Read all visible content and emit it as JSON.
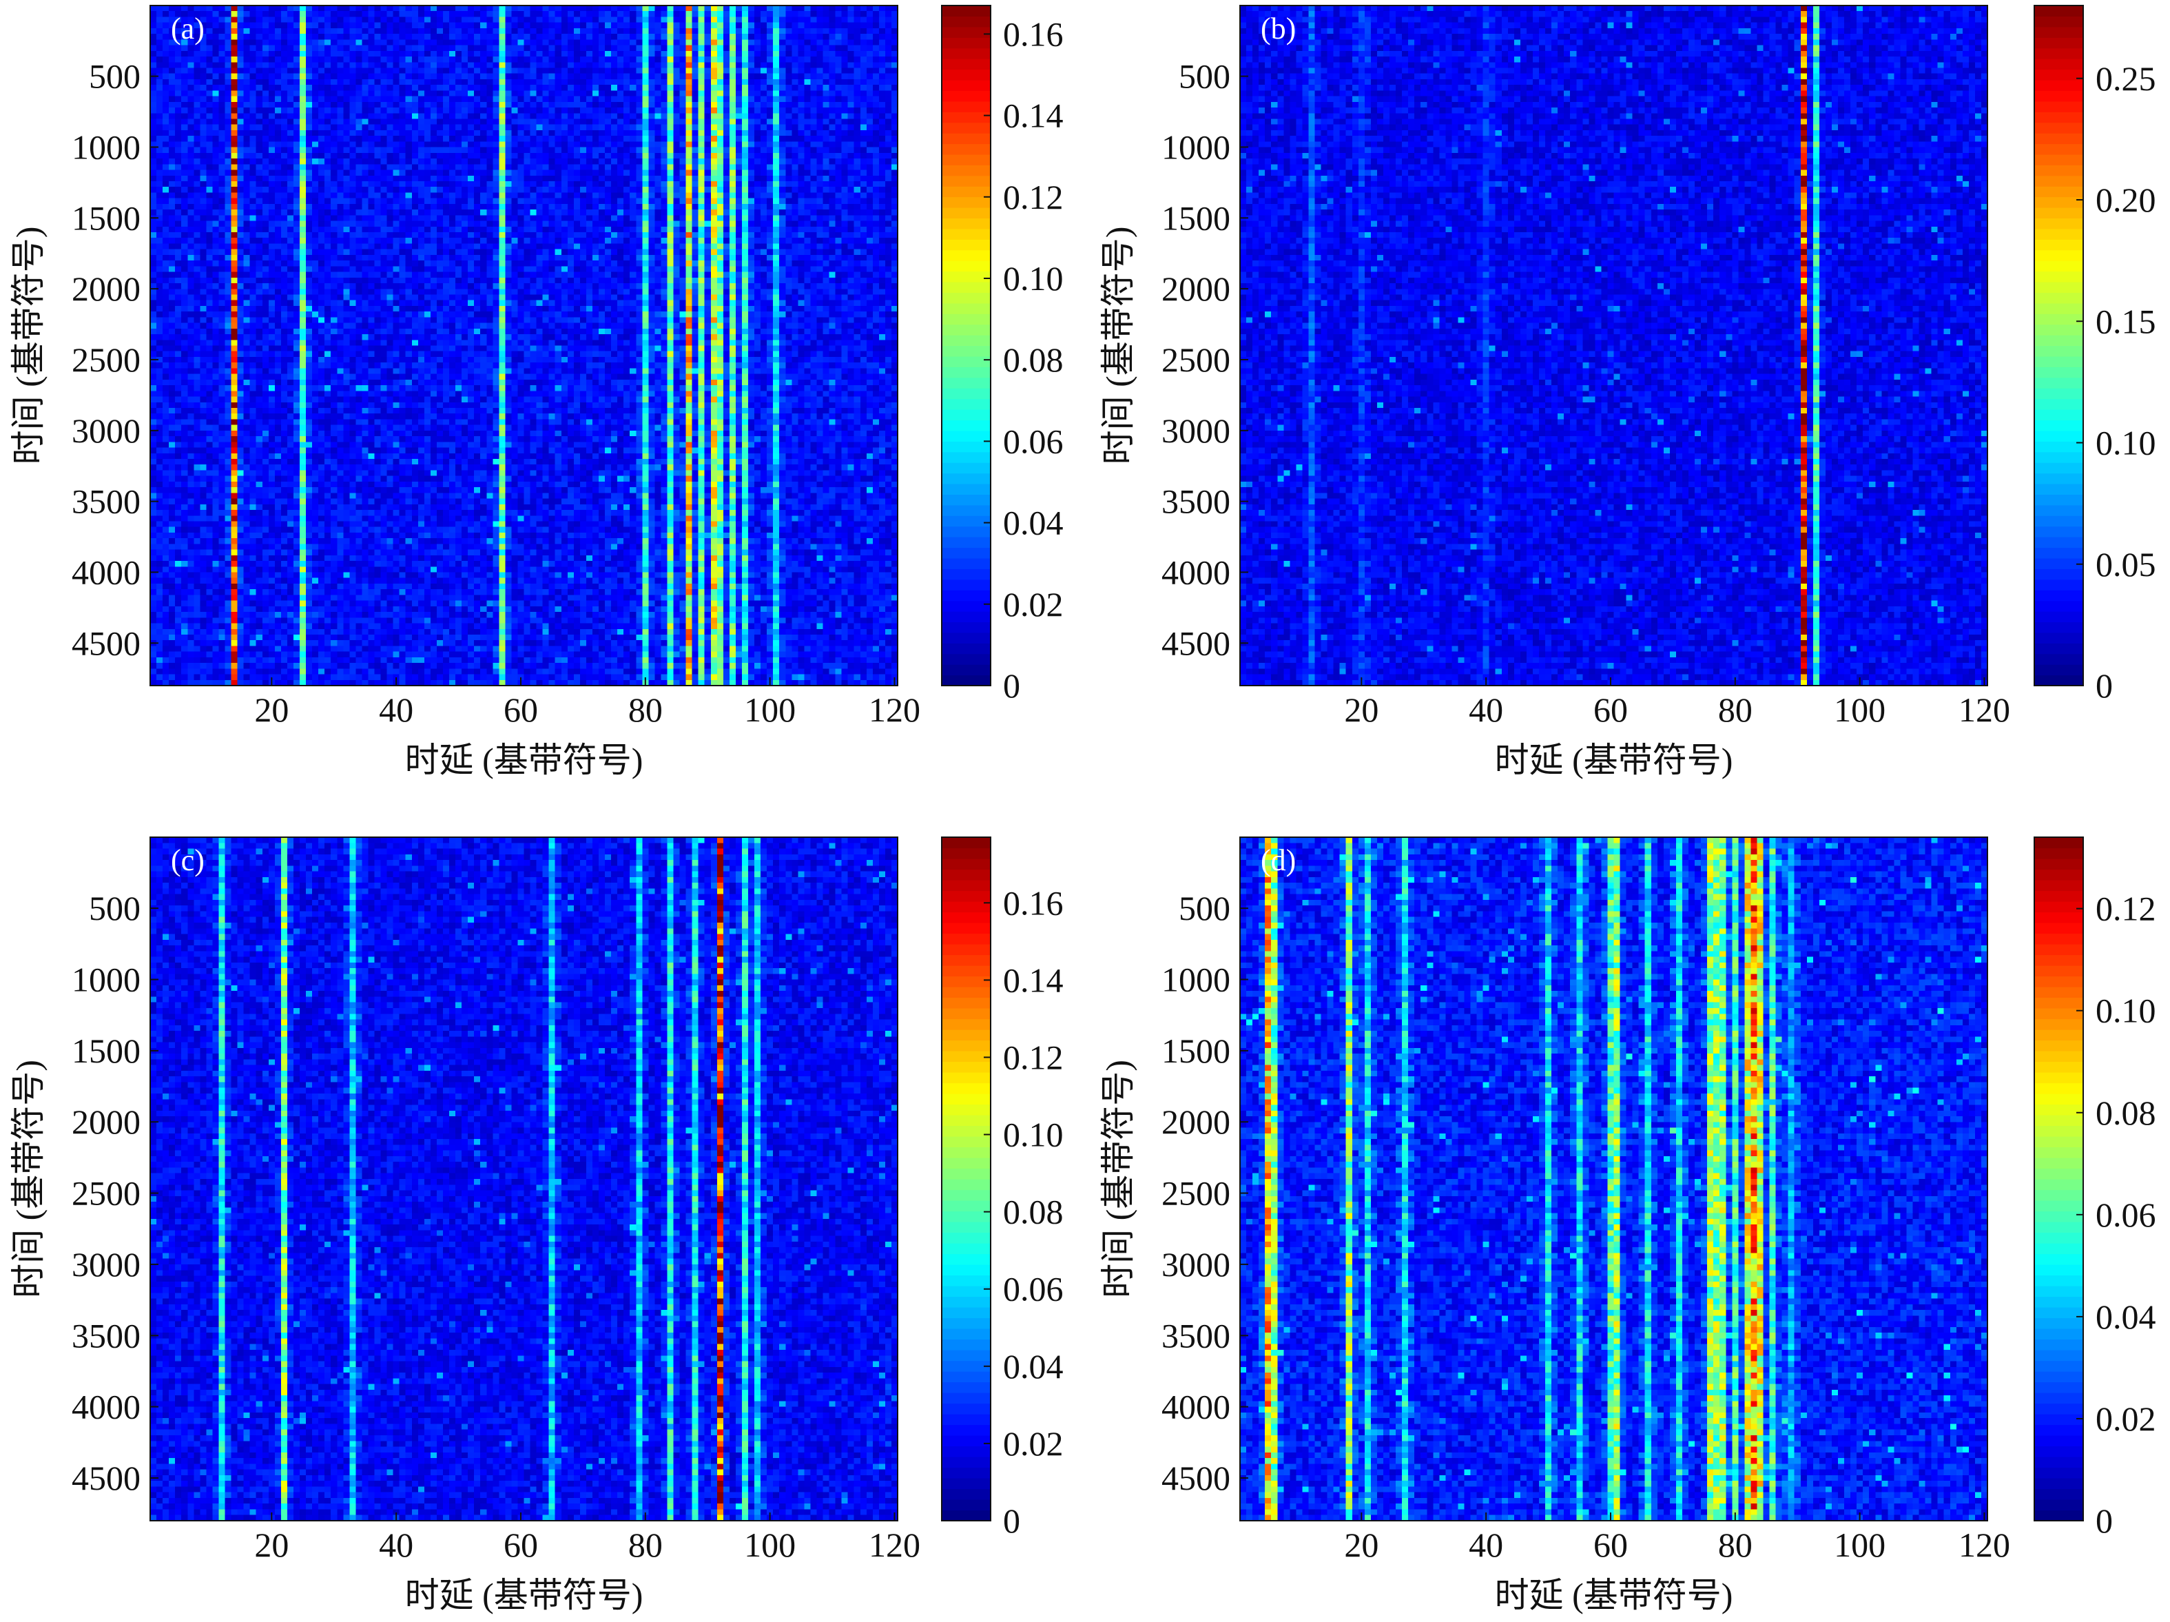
{
  "chart_data": [
    {
      "type": "heatmap",
      "panel_label": "(a)",
      "xlabel": "时延 (基带符号)",
      "ylabel": "时间 (基带符号)",
      "xlim": [
        1,
        120
      ],
      "ylim": [
        1,
        4800
      ],
      "y_reversed": true,
      "x_ticks": [
        "20",
        "40",
        "60",
        "80",
        "100",
        "120"
      ],
      "x_tick_values": [
        20,
        40,
        60,
        80,
        100,
        120
      ],
      "y_ticks": [
        "500",
        "1000",
        "1500",
        "2000",
        "2500",
        "3000",
        "3500",
        "4000",
        "4500"
      ],
      "y_tick_values": [
        500,
        1000,
        1500,
        2000,
        2500,
        3000,
        3500,
        4000,
        4500
      ],
      "colorbar": {
        "min": 0,
        "max": 0.167,
        "ticks": [
          "0",
          "0.02",
          "0.04",
          "0.06",
          "0.08",
          "0.10",
          "0.12",
          "0.14",
          "0.16"
        ],
        "tick_values": [
          0,
          0.02,
          0.04,
          0.06,
          0.08,
          0.1,
          0.12,
          0.14,
          0.16
        ],
        "colormap": "jet"
      },
      "background_level": 0.02,
      "dominant_paths": [
        {
          "delay": 14,
          "level": 0.14
        },
        {
          "delay": 25,
          "level": 0.08
        },
        {
          "delay": 57,
          "level": 0.08
        },
        {
          "delay": 80,
          "level": 0.07
        },
        {
          "delay": 84,
          "level": 0.08
        },
        {
          "delay": 87,
          "level": 0.11
        },
        {
          "delay": 89,
          "level": 0.08
        },
        {
          "delay": 91,
          "level": 0.1
        },
        {
          "delay": 92,
          "level": 0.08
        },
        {
          "delay": 94,
          "level": 0.08
        },
        {
          "delay": 96,
          "level": 0.07
        },
        {
          "delay": 101,
          "level": 0.06
        }
      ]
    },
    {
      "type": "heatmap",
      "panel_label": "(b)",
      "xlabel": "时延 (基带符号)",
      "ylabel": "时间 (基带符号)",
      "xlim": [
        1,
        120
      ],
      "ylim": [
        1,
        4800
      ],
      "y_reversed": true,
      "x_ticks": [
        "20",
        "40",
        "60",
        "80",
        "100",
        "120"
      ],
      "x_tick_values": [
        20,
        40,
        60,
        80,
        100,
        120
      ],
      "y_ticks": [
        "500",
        "1000",
        "1500",
        "2000",
        "2500",
        "3000",
        "3500",
        "4000",
        "4500"
      ],
      "y_tick_values": [
        500,
        1000,
        1500,
        2000,
        2500,
        3000,
        3500,
        4000,
        4500
      ],
      "colorbar": {
        "min": 0,
        "max": 0.28,
        "ticks": [
          "0",
          "0.05",
          "0.10",
          "0.15",
          "0.20",
          "0.25"
        ],
        "tick_values": [
          0,
          0.05,
          0.1,
          0.15,
          0.2,
          0.25
        ],
        "colormap": "jet"
      },
      "background_level": 0.03,
      "dominant_paths": [
        {
          "delay": 12,
          "level": 0.06
        },
        {
          "delay": 20,
          "level": 0.05
        },
        {
          "delay": 40,
          "level": 0.05
        },
        {
          "delay": 91,
          "level": 0.25
        },
        {
          "delay": 93,
          "level": 0.12
        }
      ]
    },
    {
      "type": "heatmap",
      "panel_label": "(c)",
      "xlabel": "时延 (基带符号)",
      "ylabel": "时间 (基带符号)",
      "xlim": [
        1,
        120
      ],
      "ylim": [
        1,
        4800
      ],
      "y_reversed": true,
      "x_ticks": [
        "20",
        "40",
        "60",
        "80",
        "100",
        "120"
      ],
      "x_tick_values": [
        20,
        40,
        60,
        80,
        100,
        120
      ],
      "y_ticks": [
        "500",
        "1000",
        "1500",
        "2000",
        "2500",
        "3000",
        "3500",
        "4000",
        "4500"
      ],
      "y_tick_values": [
        500,
        1000,
        1500,
        2000,
        2500,
        3000,
        3500,
        4000,
        4500
      ],
      "colorbar": {
        "min": 0,
        "max": 0.177,
        "ticks": [
          "0",
          "0.02",
          "0.04",
          "0.06",
          "0.08",
          "0.10",
          "0.12",
          "0.14",
          "0.16"
        ],
        "tick_values": [
          0,
          0.02,
          0.04,
          0.06,
          0.08,
          0.1,
          0.12,
          0.14,
          0.16
        ],
        "colormap": "jet"
      },
      "background_level": 0.02,
      "dominant_paths": [
        {
          "delay": 12,
          "level": 0.07
        },
        {
          "delay": 22,
          "level": 0.09
        },
        {
          "delay": 33,
          "level": 0.06
        },
        {
          "delay": 65,
          "level": 0.06
        },
        {
          "delay": 79,
          "level": 0.06
        },
        {
          "delay": 84,
          "level": 0.07
        },
        {
          "delay": 88,
          "level": 0.07
        },
        {
          "delay": 92,
          "level": 0.15
        },
        {
          "delay": 96,
          "level": 0.07
        },
        {
          "delay": 98,
          "level": 0.06
        }
      ]
    },
    {
      "type": "heatmap",
      "panel_label": "(d)",
      "xlabel": "时延 (基带符号)",
      "ylabel": "时间 (基带符号)",
      "xlim": [
        1,
        120
      ],
      "ylim": [
        1,
        4800
      ],
      "y_reversed": true,
      "x_ticks": [
        "20",
        "40",
        "60",
        "80",
        "100",
        "120"
      ],
      "x_tick_values": [
        20,
        40,
        60,
        80,
        100,
        120
      ],
      "y_ticks": [
        "500",
        "1000",
        "1500",
        "2000",
        "2500",
        "3000",
        "3500",
        "4000",
        "4500"
      ],
      "y_tick_values": [
        500,
        1000,
        1500,
        2000,
        2500,
        3000,
        3500,
        4000,
        4500
      ],
      "colorbar": {
        "min": 0,
        "max": 0.134,
        "ticks": [
          "0",
          "0.02",
          "0.04",
          "0.06",
          "0.08",
          "0.10",
          "0.12"
        ],
        "tick_values": [
          0,
          0.02,
          0.04,
          0.06,
          0.08,
          0.1,
          0.12
        ],
        "colormap": "jet"
      },
      "background_level": 0.018,
      "dominant_paths": [
        {
          "delay": 5,
          "level": 0.09
        },
        {
          "delay": 6,
          "level": 0.07
        },
        {
          "delay": 18,
          "level": 0.07
        },
        {
          "delay": 21,
          "level": 0.05
        },
        {
          "delay": 27,
          "level": 0.05
        },
        {
          "delay": 50,
          "level": 0.05
        },
        {
          "delay": 55,
          "level": 0.05
        },
        {
          "delay": 60,
          "level": 0.06
        },
        {
          "delay": 61,
          "level": 0.07
        },
        {
          "delay": 66,
          "level": 0.05
        },
        {
          "delay": 71,
          "level": 0.05
        },
        {
          "delay": 76,
          "level": 0.07
        },
        {
          "delay": 77,
          "level": 0.07
        },
        {
          "delay": 78,
          "level": 0.07
        },
        {
          "delay": 80,
          "level": 0.06
        },
        {
          "delay": 82,
          "level": 0.08
        },
        {
          "delay": 83,
          "level": 0.1
        },
        {
          "delay": 84,
          "level": 0.08
        },
        {
          "delay": 86,
          "level": 0.06
        },
        {
          "delay": 89,
          "level": 0.04
        }
      ]
    }
  ]
}
